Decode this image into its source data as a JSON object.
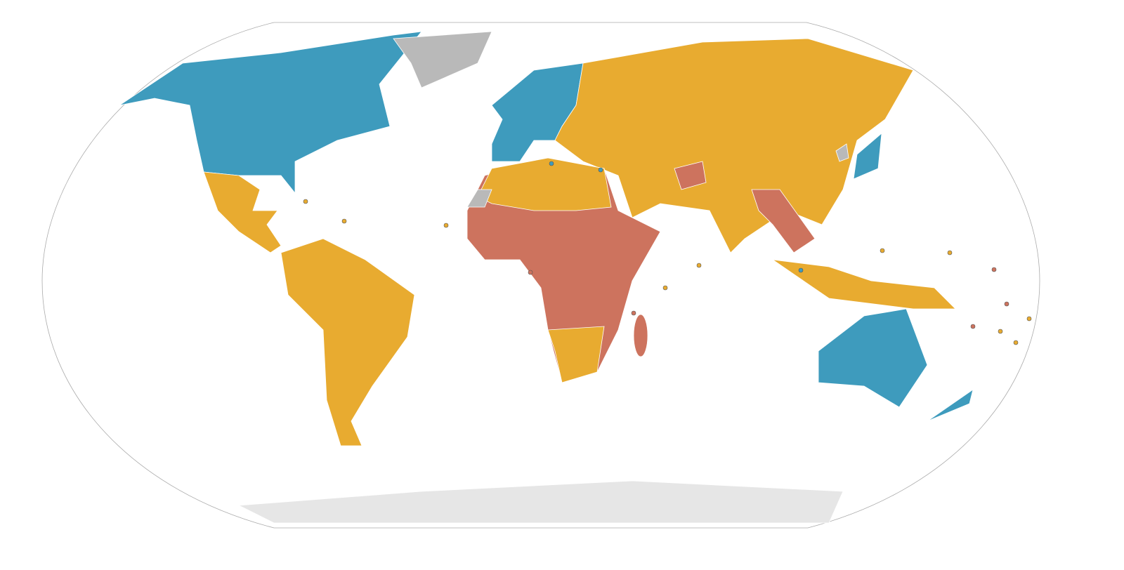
{
  "map": {
    "palette": [
      "#3e9bbd",
      "#e8ab30",
      "#cd735e",
      "#b9b9b9",
      "#e6e6e6"
    ]
  }
}
